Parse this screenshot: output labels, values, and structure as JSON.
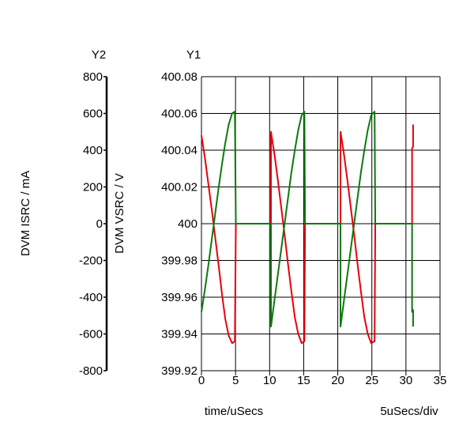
{
  "chart_data": {
    "type": "line",
    "y2_title": "Y2",
    "y1_title": "Y1",
    "y2_label": "DVM ISRC / mA",
    "y1_label": "DVM VSRC / V",
    "x_label": "time/uSecs",
    "x_div_label": "5uSecs/div",
    "xlim": [
      0,
      35
    ],
    "x_ticks": [
      "0",
      "5",
      "10",
      "15",
      "20",
      "25",
      "30",
      "35"
    ],
    "y1lim": [
      399.92,
      400.08
    ],
    "y1_ticks": [
      "399.92",
      "399.94",
      "399.96",
      "399.98",
      "400",
      "400.02",
      "400.04",
      "400.06",
      "400.08"
    ],
    "y2lim": [
      -800,
      800
    ],
    "y2_ticks": [
      "-800",
      "-600",
      "-400",
      "-200",
      "0",
      "200",
      "400",
      "600",
      "800"
    ],
    "grid": true,
    "colors": {
      "voltage": "#e8000b",
      "current": "#0a7a0a",
      "grid": "#000000"
    },
    "series": [
      {
        "axis": "y1",
        "color": "#e8000b",
        "points": [
          [
            0,
            400.048
          ],
          [
            0.5,
            400.036
          ],
          [
            1,
            400.022
          ],
          [
            1.5,
            400.008
          ],
          [
            2,
            399.993
          ],
          [
            2.5,
            399.978
          ],
          [
            3,
            399.962
          ],
          [
            3.5,
            399.948
          ],
          [
            4,
            399.939
          ],
          [
            4.5,
            399.935
          ],
          [
            4.9,
            399.936
          ],
          [
            5.05,
            400.0
          ],
          [
            10.2,
            400.0
          ],
          [
            10.2,
            400.05
          ],
          [
            10.7,
            400.038
          ],
          [
            11.2,
            400.024
          ],
          [
            11.7,
            400.009
          ],
          [
            12.2,
            399.994
          ],
          [
            12.7,
            399.978
          ],
          [
            13.2,
            399.963
          ],
          [
            13.7,
            399.949
          ],
          [
            14.2,
            399.94
          ],
          [
            14.7,
            399.935
          ],
          [
            15.1,
            399.936
          ],
          [
            15.2,
            400.0
          ],
          [
            20.4,
            400.0
          ],
          [
            20.4,
            400.05
          ],
          [
            20.9,
            400.038
          ],
          [
            21.4,
            400.024
          ],
          [
            21.9,
            400.009
          ],
          [
            22.4,
            399.994
          ],
          [
            22.9,
            399.978
          ],
          [
            23.4,
            399.963
          ],
          [
            23.9,
            399.949
          ],
          [
            24.4,
            399.94
          ],
          [
            24.9,
            399.935
          ],
          [
            25.4,
            399.936
          ],
          [
            25.5,
            400.0
          ],
          [
            30.9,
            400.0
          ],
          [
            30.9,
            400.041
          ],
          [
            31.05,
            400.042
          ],
          [
            31.05,
            400.054
          ]
        ]
      },
      {
        "axis": "y2",
        "color": "#0a7a0a",
        "points": [
          [
            0,
            -480
          ],
          [
            0.5,
            -360
          ],
          [
            1,
            -230
          ],
          [
            1.5,
            -90
          ],
          [
            2,
            50
          ],
          [
            2.5,
            190
          ],
          [
            3,
            320
          ],
          [
            3.5,
            440
          ],
          [
            4,
            540
          ],
          [
            4.5,
            600
          ],
          [
            4.9,
            610
          ],
          [
            5.05,
            0
          ],
          [
            10.2,
            0
          ],
          [
            10.2,
            -560
          ],
          [
            10.7,
            -420
          ],
          [
            11.2,
            -280
          ],
          [
            11.7,
            -140
          ],
          [
            12.2,
            0
          ],
          [
            12.7,
            140
          ],
          [
            13.2,
            280
          ],
          [
            13.7,
            400
          ],
          [
            14.2,
            510
          ],
          [
            14.7,
            590
          ],
          [
            15.1,
            610
          ],
          [
            15.2,
            0
          ],
          [
            20.4,
            0
          ],
          [
            20.4,
            -560
          ],
          [
            20.9,
            -420
          ],
          [
            21.4,
            -280
          ],
          [
            21.9,
            -140
          ],
          [
            22.4,
            0
          ],
          [
            22.9,
            140
          ],
          [
            23.4,
            280
          ],
          [
            23.9,
            400
          ],
          [
            24.4,
            510
          ],
          [
            24.9,
            590
          ],
          [
            25.4,
            610
          ],
          [
            25.5,
            0
          ],
          [
            30.9,
            0
          ],
          [
            30.9,
            -480
          ],
          [
            31.05,
            -470
          ],
          [
            31.05,
            -560
          ]
        ]
      }
    ]
  }
}
